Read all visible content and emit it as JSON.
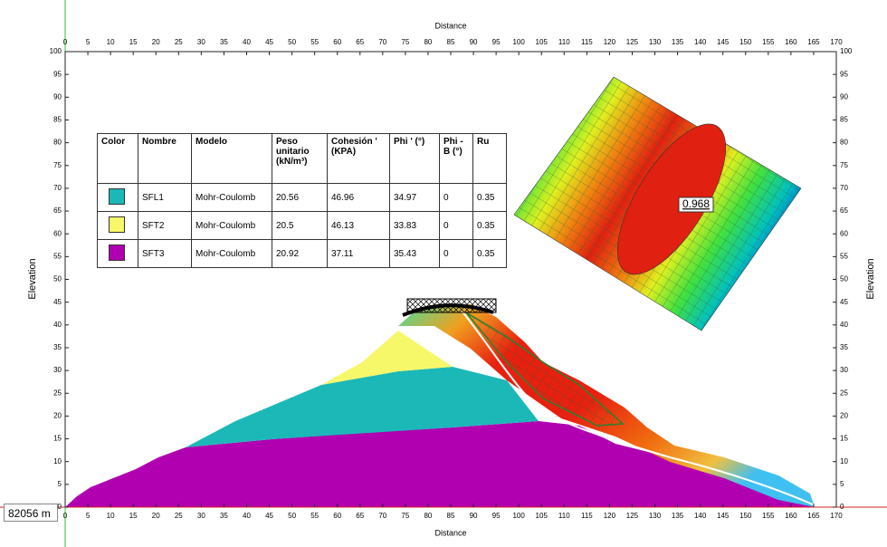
{
  "axes": {
    "x_label": "Distance",
    "y_label": "Elevation",
    "xlim": [
      0,
      170
    ],
    "ylim": [
      0,
      100
    ],
    "xticks": [
      0,
      5,
      10,
      15,
      20,
      25,
      30,
      35,
      40,
      45,
      50,
      55,
      60,
      65,
      70,
      75,
      80,
      85,
      90,
      95,
      100,
      105,
      110,
      115,
      120,
      125,
      130,
      135,
      140,
      145,
      150,
      155,
      160,
      165,
      170
    ],
    "yticks": [
      0,
      5,
      10,
      15,
      20,
      25,
      30,
      35,
      40,
      45,
      50,
      55,
      60,
      65,
      70,
      75,
      80,
      85,
      90,
      95,
      100
    ]
  },
  "table": {
    "headers": [
      "Color",
      "Nombre",
      "Modelo",
      "Peso unitario (kN/m³)",
      "Cohesión ' (KPA)",
      "Phi ' (°)",
      "Phi -B (°)",
      "Ru"
    ],
    "colors": [
      "#1cb8b8",
      "#f7f76a",
      "#b000b0"
    ],
    "rows": [
      [
        "SFL1",
        "Mohr-Coulomb",
        20.56,
        46.96,
        34.97,
        0,
        0.35
      ],
      [
        "SFT2",
        "Mohr-Coulomb",
        20.5,
        46.13,
        33.83,
        0,
        0.35
      ],
      [
        "SFT3",
        "Mohr-Coulomb",
        20.92,
        37.11,
        35.43,
        0,
        0.35
      ]
    ]
  },
  "factor_of_safety": "0.968",
  "status": "82056 m"
}
